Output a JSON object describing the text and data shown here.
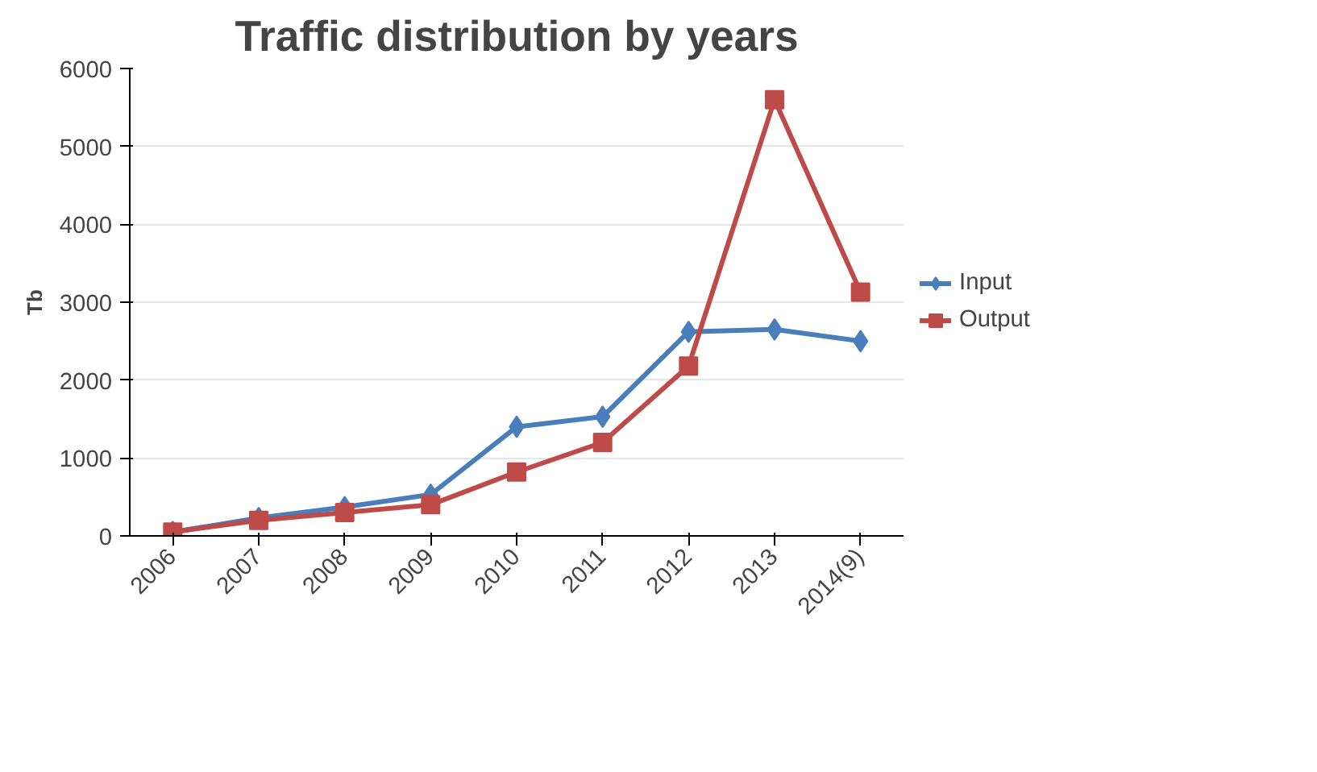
{
  "chart_data": {
    "type": "line",
    "title": "Traffic distribution by years",
    "ylabel": "Tb",
    "categories": [
      "2006",
      "2007",
      "2008",
      "2009",
      "2010",
      "2011",
      "2012",
      "2013",
      "2014(9)"
    ],
    "series": [
      {
        "name": "Input",
        "color": "#4a7ebb",
        "marker": "diamond",
        "values": [
          50,
          230,
          370,
          530,
          1400,
          1530,
          2620,
          2650,
          2500
        ]
      },
      {
        "name": "Output",
        "color": "#be4b48",
        "marker": "square",
        "values": [
          50,
          200,
          300,
          400,
          820,
          1200,
          2180,
          5600,
          3130
        ]
      }
    ],
    "ylim": [
      0,
      6000
    ],
    "yticks": [
      0,
      1000,
      2000,
      3000,
      4000,
      5000,
      6000
    ],
    "grid": "y",
    "legend": "right",
    "line_style": "solid"
  }
}
